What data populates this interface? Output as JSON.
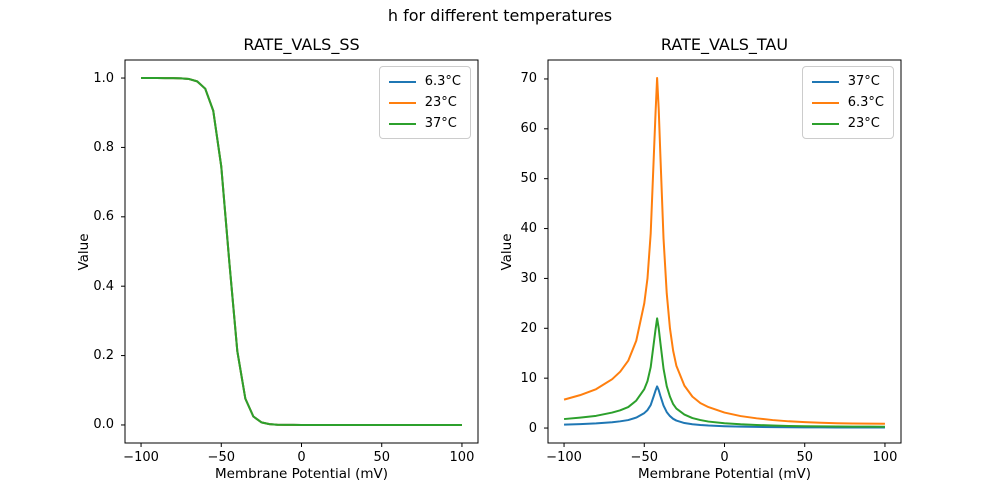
{
  "figure": {
    "suptitle": "h for different temperatures",
    "background": "#ffffff",
    "text_color": "#000000"
  },
  "chart_data": [
    {
      "type": "line",
      "title": "RATE_VALS_SS",
      "xlabel": "Membrane Potential (mV)",
      "ylabel": "Value",
      "xlim": [
        -110,
        110
      ],
      "ylim": [
        -0.052,
        1.052
      ],
      "xticks": [
        -100,
        -50,
        0,
        50,
        100
      ],
      "xtick_labels": [
        "−100",
        "−50",
        "0",
        "50",
        "100"
      ],
      "yticks": [
        0.0,
        0.2,
        0.4,
        0.6,
        0.8,
        1.0
      ],
      "ytick_labels": [
        "0.0",
        "0.2",
        "0.4",
        "0.6",
        "0.8",
        "1.0"
      ],
      "grid": false,
      "legend_loc": "upper right",
      "overlap_note": "all three temperature curves coincide exactly; the last-drawn green 37°C line is the visible one",
      "x": [
        -100,
        -95,
        -90,
        -85,
        -80,
        -75,
        -70,
        -65,
        -60,
        -55,
        -50,
        -45,
        -40,
        -35,
        -30,
        -25,
        -20,
        -15,
        -10,
        -5,
        0,
        5,
        10,
        15,
        20,
        25,
        30,
        35,
        40,
        45,
        50,
        55,
        60,
        65,
        70,
        75,
        80,
        85,
        90,
        95,
        100
      ],
      "series": [
        {
          "name": "6.3°C",
          "color": "#1f77b4",
          "values": [
            1.0,
            1.0,
            1.0,
            0.9999,
            0.9997,
            0.9991,
            0.9971,
            0.9904,
            0.9693,
            0.9057,
            0.7448,
            0.4703,
            0.2127,
            0.0759,
            0.0244,
            0.0075,
            0.0023,
            0.0007,
            0.0002,
            0.0001,
            0,
            0,
            0,
            0,
            0,
            0,
            0,
            0,
            0,
            0,
            0,
            0,
            0,
            0,
            0,
            0,
            0,
            0,
            0,
            0,
            0
          ]
        },
        {
          "name": "23°C",
          "color": "#ff7f0e",
          "values": [
            1.0,
            1.0,
            1.0,
            0.9999,
            0.9997,
            0.9991,
            0.9971,
            0.9904,
            0.9693,
            0.9057,
            0.7448,
            0.4703,
            0.2127,
            0.0759,
            0.0244,
            0.0075,
            0.0023,
            0.0007,
            0.0002,
            0.0001,
            0,
            0,
            0,
            0,
            0,
            0,
            0,
            0,
            0,
            0,
            0,
            0,
            0,
            0,
            0,
            0,
            0,
            0,
            0,
            0,
            0
          ]
        },
        {
          "name": "37°C",
          "color": "#2ca02c",
          "values": [
            1.0,
            1.0,
            1.0,
            0.9999,
            0.9997,
            0.9991,
            0.9971,
            0.9904,
            0.9693,
            0.9057,
            0.7448,
            0.4703,
            0.2127,
            0.0759,
            0.0244,
            0.0075,
            0.0023,
            0.0007,
            0.0002,
            0.0001,
            0,
            0,
            0,
            0,
            0,
            0,
            0,
            0,
            0,
            0,
            0,
            0,
            0,
            0,
            0,
            0,
            0,
            0,
            0,
            0,
            0
          ]
        }
      ]
    },
    {
      "type": "line",
      "title": "RATE_VALS_TAU",
      "xlabel": "Membrane Potential (mV)",
      "ylabel": "Value",
      "xlim": [
        -110,
        110
      ],
      "ylim": [
        -3.0,
        73.8
      ],
      "xticks": [
        -100,
        -50,
        0,
        50,
        100
      ],
      "xtick_labels": [
        "−100",
        "−50",
        "0",
        "50",
        "100"
      ],
      "yticks": [
        0,
        10,
        20,
        30,
        40,
        50,
        60,
        70
      ],
      "ytick_labels": [
        "0",
        "10",
        "20",
        "30",
        "40",
        "50",
        "60",
        "70"
      ],
      "grid": false,
      "legend_loc": "upper right",
      "x": [
        -100,
        -90,
        -80,
        -70,
        -65,
        -60,
        -55,
        -50,
        -48,
        -46,
        -44,
        -43,
        -42,
        -41,
        -40,
        -38,
        -36,
        -34,
        -32,
        -30,
        -25,
        -20,
        -15,
        -10,
        0,
        10,
        20,
        30,
        40,
        50,
        60,
        70,
        80,
        90,
        100
      ],
      "series": [
        {
          "name": "37°C",
          "color": "#1f77b4",
          "values": [
            0.68,
            0.79,
            0.93,
            1.17,
            1.35,
            1.6,
            2.1,
            3.0,
            3.6,
            4.6,
            6.5,
            7.5,
            8.35,
            7.6,
            6.5,
            4.5,
            3.2,
            2.4,
            1.85,
            1.5,
            1.0,
            0.75,
            0.6,
            0.5,
            0.37,
            0.29,
            0.23,
            0.19,
            0.16,
            0.14,
            0.125,
            0.115,
            0.11,
            0.105,
            0.1
          ]
        },
        {
          "name": "6.3°C",
          "color": "#ff7f0e",
          "values": [
            5.7,
            6.6,
            7.8,
            9.8,
            11.3,
            13.5,
            17.5,
            25,
            30,
            39,
            55,
            63,
            70.2,
            64,
            55,
            38,
            27,
            20,
            15.5,
            12.5,
            8.5,
            6.3,
            5.0,
            4.2,
            3.1,
            2.4,
            1.95,
            1.6,
            1.35,
            1.18,
            1.05,
            0.97,
            0.92,
            0.88,
            0.85
          ]
        },
        {
          "name": "23°C",
          "color": "#2ca02c",
          "values": [
            1.8,
            2.1,
            2.45,
            3.1,
            3.55,
            4.2,
            5.5,
            7.8,
            9.4,
            12.2,
            17.2,
            19.7,
            22.0,
            20.0,
            17.2,
            11.9,
            8.4,
            6.3,
            4.8,
            3.9,
            2.7,
            2.0,
            1.6,
            1.3,
            0.97,
            0.75,
            0.61,
            0.5,
            0.42,
            0.37,
            0.33,
            0.3,
            0.29,
            0.28,
            0.27
          ]
        }
      ]
    }
  ]
}
